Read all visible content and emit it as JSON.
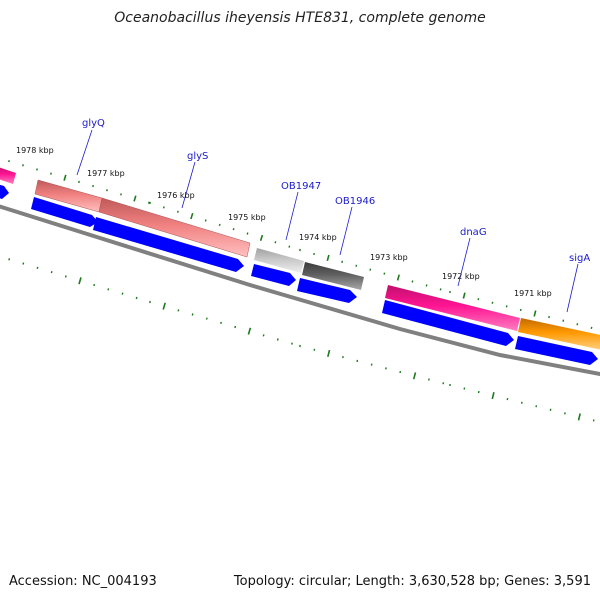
{
  "title": "Oceanobacillus iheyensis HTE831, complete genome",
  "footer": {
    "accession": "Accession: NC_004193",
    "summary": "Topology: circular; Length: 3,630,528 bp; Genes: 3,591"
  },
  "colors": {
    "background": "#ffffff",
    "backbone": "#808080",
    "cds_arrow": "#0000ff",
    "tick": "#1e7a1e",
    "label": "#1a1acc"
  },
  "kbp_labels": [
    "1978 kbp",
    "1977 kbp",
    "1976 kbp",
    "1975 kbp",
    "1974 kbp",
    "1973 kbp",
    "1972 kbp",
    "1971 kbp"
  ],
  "features": [
    {
      "name": "",
      "color": "#ff1493"
    },
    {
      "name": "glyQ",
      "color": "#f08080"
    },
    {
      "name": "glyS",
      "color": "#f08080"
    },
    {
      "name": "OB1947",
      "color": "#c0c0c0"
    },
    {
      "name": "OB1946",
      "color": "#606060"
    },
    {
      "name": "dnaG",
      "color": "#ff1493"
    },
    {
      "name": "sigA",
      "color": "#ff9900"
    }
  ]
}
